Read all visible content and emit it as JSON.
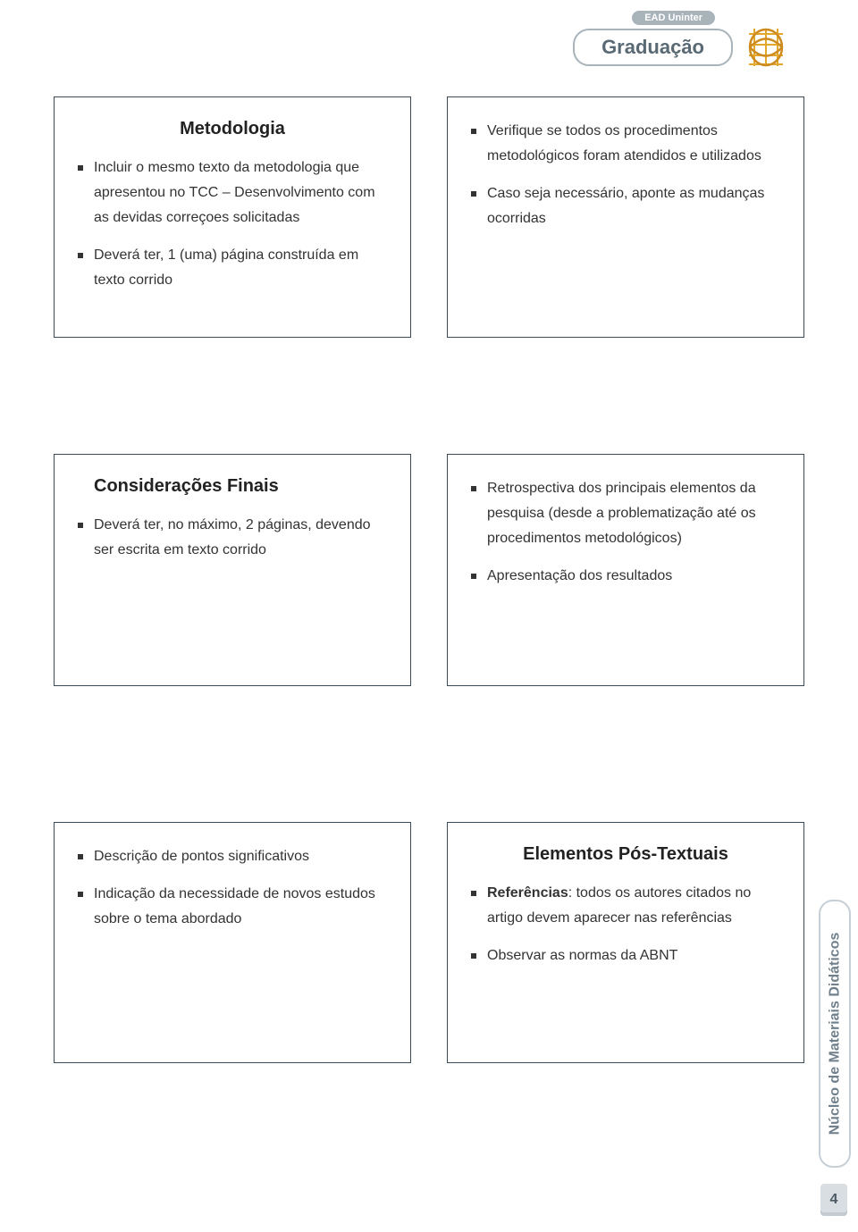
{
  "header": {
    "ead_tag": "EAD Uninter",
    "graduacao": "Graduação"
  },
  "side_label": "Núcleo de Materiais Didáticos",
  "page_number": "4",
  "row1": {
    "left": {
      "title": "Metodologia",
      "items": [
        "Incluir o mesmo texto da metodologia que apresentou no TCC – Desenvolvimento com as devidas correçoes solicitadas",
        "Deverá ter, 1 (uma) página construída em texto corrido"
      ]
    },
    "right": {
      "items": [
        "Verifique se todos os procedimentos metodológicos foram atendidos e utilizados",
        "Caso seja necessário, aponte as mudanças ocorridas"
      ]
    }
  },
  "row2": {
    "left": {
      "title": "Considerações Finais",
      "items": [
        "Deverá ter, no máximo, 2 páginas, devendo ser escrita em texto corrido"
      ]
    },
    "right": {
      "items": [
        "Retrospectiva dos principais elementos da pesquisa (desde a problematização até os procedimentos metodológicos)",
        "Apresentação dos resultados"
      ]
    }
  },
  "row3": {
    "left": {
      "items": [
        "Descrição de pontos significativos",
        "Indicação da necessidade de novos estudos sobre o tema abordado"
      ]
    },
    "right": {
      "title": "Elementos Pós-Textuais",
      "items_html": [
        "<b>Referências</b>: todos os autores citados no artigo devem aparecer nas referências",
        "Observar as normas da ABNT"
      ]
    }
  }
}
